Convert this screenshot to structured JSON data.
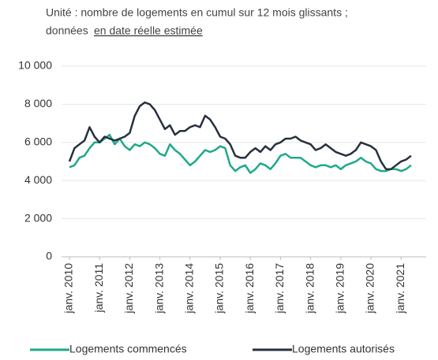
{
  "chart_data": {
    "type": "line",
    "subtitle": "Unité : nombre de logements en cumul sur 12 mois glissants ;",
    "subtitle_line2": "données",
    "subtitle_link": "en date réelle estimée",
    "categories": [
      "janv. 2010",
      null,
      null,
      null,
      null,
      null,
      "janv. 2011",
      null,
      null,
      null,
      null,
      null,
      "janv. 2012",
      null,
      null,
      null,
      null,
      null,
      "janv. 2013",
      null,
      null,
      null,
      null,
      null,
      "janv. 2014",
      null,
      null,
      null,
      null,
      null,
      "janv. 2015",
      null,
      null,
      null,
      null,
      null,
      "janv. 2016",
      null,
      null,
      null,
      null,
      null,
      "janv. 2017",
      null,
      null,
      null,
      null,
      null,
      "janv. 2018",
      null,
      null,
      null,
      null,
      null,
      "janv. 2019",
      null,
      null,
      null,
      null,
      null,
      "janv. 2020",
      null,
      null,
      null,
      null,
      null,
      "janv. 2021",
      null,
      null
    ],
    "series": [
      {
        "name": "Logements commencés",
        "color": "#1fa98a",
        "values": [
          4700,
          4800,
          5200,
          5300,
          5700,
          6000,
          6000,
          6200,
          6400,
          5900,
          6200,
          5800,
          5600,
          5900,
          5800,
          6000,
          5900,
          5700,
          5400,
          5300,
          5900,
          5600,
          5400,
          5100,
          4800,
          5000,
          5300,
          5600,
          5500,
          5600,
          5800,
          5700,
          4800,
          4500,
          4700,
          4800,
          4400,
          4600,
          4900,
          4800,
          4600,
          4900,
          5300,
          5400,
          5200,
          5200,
          5200,
          5000,
          4800,
          4700,
          4800,
          4800,
          4700,
          4800,
          4600,
          4800,
          4900,
          5000,
          5200,
          5000,
          4900,
          4600,
          4500,
          4500,
          4600,
          4600,
          4500,
          4600,
          4800
        ]
      },
      {
        "name": "Logements autorisés",
        "color": "#27303f",
        "values": [
          5000,
          5700,
          5900,
          6100,
          6800,
          6300,
          6000,
          6300,
          6200,
          6100,
          6200,
          6300,
          6500,
          7400,
          7900,
          8100,
          8000,
          7700,
          7200,
          6700,
          6900,
          6400,
          6600,
          6600,
          6800,
          6900,
          6800,
          7400,
          7200,
          6800,
          6300,
          6200,
          5900,
          5300,
          5200,
          5200,
          5500,
          5700,
          5500,
          5800,
          5600,
          5900,
          6000,
          6200,
          6200,
          6300,
          6100,
          6000,
          5900,
          5600,
          5700,
          5900,
          5700,
          5500,
          5400,
          5300,
          5400,
          5600,
          6000,
          5900,
          5800,
          5600,
          5000,
          4600,
          4600,
          4800,
          5000,
          5100,
          5300
        ]
      }
    ],
    "ylim": [
      0,
      10000
    ],
    "yticks": [
      0,
      {
        "value": 2000,
        "label": "2 000"
      },
      {
        "value": 4000,
        "label": "4 000"
      },
      {
        "value": 6000,
        "label": "6 000"
      },
      {
        "value": 8000,
        "label": "8 000"
      },
      {
        "value": 10000,
        "label": "10 000"
      }
    ],
    "grid": true,
    "legend": "bottom"
  }
}
